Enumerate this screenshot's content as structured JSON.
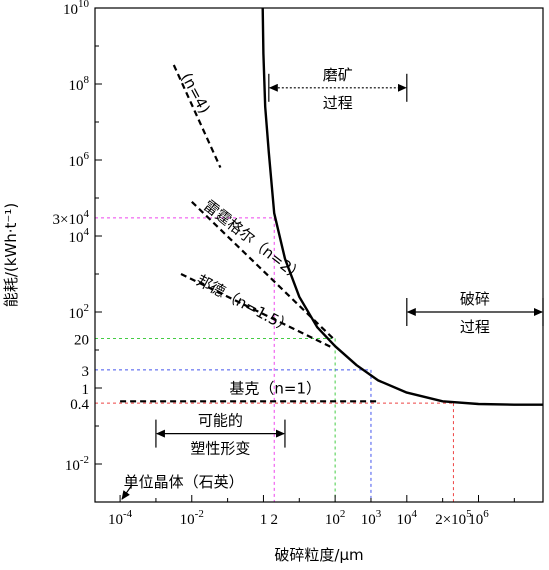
{
  "chart_data": {
    "type": "line",
    "title": "",
    "xlabel": "破碎粒度/μm",
    "ylabel": "能耗/(kWh·t⁻¹)",
    "xscale": "log",
    "yscale": "log",
    "xlim": [
      -4.7,
      7.8
    ],
    "ylim": [
      -3.0,
      10.0
    ],
    "x_ticks": [
      {
        "value": -4,
        "base": "10",
        "exp": "-4"
      },
      {
        "value": -2,
        "base": "10",
        "exp": "-2"
      },
      {
        "value": 0,
        "base": "1",
        "exp": ""
      },
      {
        "value": 2,
        "base": "10",
        "exp": "2"
      },
      {
        "value": 4,
        "base": "10",
        "exp": "4"
      },
      {
        "value": 6,
        "base": "10",
        "exp": "6"
      }
    ],
    "y_ticks": [
      {
        "value": 10,
        "base": "10",
        "exp": "10"
      },
      {
        "value": 8,
        "base": "10",
        "exp": "8"
      },
      {
        "value": 6,
        "base": "10",
        "exp": "6"
      },
      {
        "value": 4,
        "base": "10",
        "exp": "4"
      },
      {
        "value": 2,
        "base": "10",
        "exp": "2"
      },
      {
        "value": 0,
        "base": "1",
        "exp": ""
      },
      {
        "value": -2,
        "base": "10",
        "exp": "-2"
      }
    ],
    "series": [
      {
        "style": "solid",
        "points": [
          [
            -0.02,
            10.0
          ],
          [
            0,
            8.8
          ],
          [
            0.05,
            7.4
          ],
          [
            0.15,
            6.2
          ],
          [
            0.3,
            4.6
          ],
          [
            0.6,
            3.4
          ],
          [
            1.0,
            2.4
          ],
          [
            1.5,
            1.6
          ],
          [
            2.0,
            1.1
          ],
          [
            2.6,
            0.6
          ],
          [
            3.2,
            0.2
          ],
          [
            4.0,
            -0.12
          ],
          [
            5.0,
            -0.35
          ],
          [
            6.0,
            -0.42
          ],
          [
            7.0,
            -0.44
          ],
          [
            7.8,
            -0.44
          ]
        ]
      },
      {
        "style": "dashed",
        "points": [
          [
            -2.5,
            8.5
          ],
          [
            -1.2,
            5.8
          ]
        ]
      },
      {
        "style": "dashed",
        "points": [
          [
            -2.0,
            4.9
          ],
          [
            1.95,
            1.3
          ]
        ]
      },
      {
        "style": "dashed",
        "points": [
          [
            -2.3,
            3.0
          ],
          [
            1.95,
            1.05
          ]
        ]
      },
      {
        "style": "dashed",
        "points": [
          [
            -4.0,
            -0.35
          ],
          [
            3.2,
            -0.35
          ]
        ]
      }
    ],
    "reference_lines": [
      {
        "x": 0.301,
        "y": 4.477,
        "color": "#ee44ee",
        "xlabel": "2",
        "ylabel_base": "3×10",
        "ylabel_exp": "4"
      },
      {
        "x": 2.0,
        "y": 1.301,
        "color": "#44cc44",
        "xlabel": "",
        "ylabel_base": "20",
        "ylabel_exp": ""
      },
      {
        "x": 3.0,
        "y": 0.477,
        "color": "#4455ee",
        "xlabel_base": "10",
        "xlabel_exp": "3",
        "ylabel_base": "3",
        "ylabel_exp": ""
      },
      {
        "x": 5.301,
        "y": -0.398,
        "color": "#ee4444",
        "xlabel_base": "2×10",
        "xlabel_exp": "5",
        "ylabel_base": "0.4",
        "ylabel_exp": ""
      }
    ],
    "curve_labels": [
      {
        "text": "(n=4)",
        "x": -2.3,
        "y": 8.2,
        "angle": 62
      },
      {
        "text": "雷霆格尔（n=2）",
        "x": -1.7,
        "y": 4.75,
        "angle": 38
      },
      {
        "text": "邦德（n=1.5）",
        "x": -1.9,
        "y": 2.75,
        "angle": 28
      },
      {
        "text": "基克（n=1）",
        "x": -0.95,
        "y": -0.15,
        "angle": 0
      }
    ],
    "annotations": {
      "grinding": {
        "line1": "磨矿",
        "line2": "过程",
        "x_from": 0.15,
        "x_to": 4.0,
        "y": 7.9
      },
      "crushing": {
        "line1": "破碎",
        "line2": "过程",
        "x_from": 4.0,
        "x_to": 7.8,
        "y": 2.0
      },
      "plastic": {
        "line1": "可能的",
        "line2": "塑性形变",
        "x_from": -3.0,
        "x_to": 0.6,
        "y": -1.2
      },
      "crystal": {
        "text": "单位晶体（石英）",
        "x": -3.9,
        "y": -2.6
      }
    }
  }
}
